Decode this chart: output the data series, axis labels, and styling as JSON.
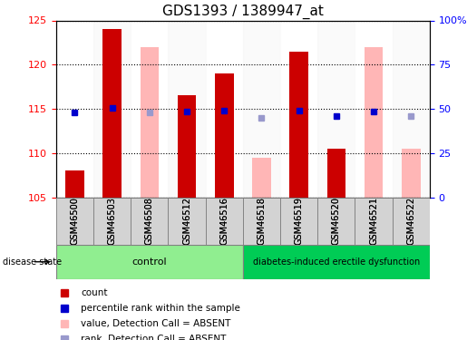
{
  "title": "GDS1393 / 1389947_at",
  "samples": [
    "GSM46500",
    "GSM46503",
    "GSM46508",
    "GSM46512",
    "GSM46516",
    "GSM46518",
    "GSM46519",
    "GSM46520",
    "GSM46521",
    "GSM46522"
  ],
  "control_count": 5,
  "ymin": 105,
  "ymax": 125,
  "yticks": [
    105,
    110,
    115,
    120,
    125
  ],
  "y2min": 0,
  "y2max": 100,
  "y2ticks": [
    0,
    25,
    50,
    75,
    100
  ],
  "y2ticklabels": [
    "0",
    "25",
    "50",
    "75",
    "100%"
  ],
  "red_bars": [
    108.0,
    124.0,
    null,
    116.5,
    119.0,
    null,
    121.5,
    110.5,
    null,
    null
  ],
  "pink_bars": [
    null,
    null,
    122.0,
    null,
    null,
    109.5,
    null,
    null,
    122.0,
    110.5
  ],
  "blue_squares": [
    114.6,
    115.1,
    null,
    114.7,
    114.8,
    null,
    114.8,
    114.2,
    114.7,
    null
  ],
  "lightblue_squares": [
    null,
    null,
    114.6,
    null,
    null,
    114.0,
    null,
    null,
    null,
    114.2
  ],
  "red_color": "#cc0000",
  "pink_color": "#ffb6b6",
  "blue_color": "#0000cc",
  "lightblue_color": "#9999cc",
  "control_bg": "#90ee90",
  "disease_bg": "#00cc66",
  "label_control": "control",
  "label_disease": "diabetes-induced erectile dysfunction",
  "group_label": "disease state",
  "legend_items": [
    "count",
    "percentile rank within the sample",
    "value, Detection Call = ABSENT",
    "rank, Detection Call = ABSENT"
  ],
  "legend_colors": [
    "#cc0000",
    "#0000cc",
    "#ffb6b6",
    "#9999cc"
  ],
  "bar_width": 0.5
}
